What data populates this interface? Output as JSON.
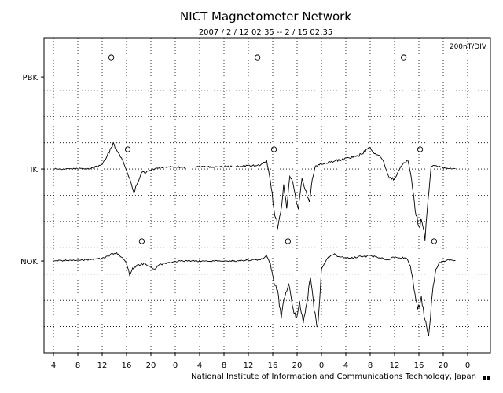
{
  "chart_data": {
    "type": "line",
    "title": "NICT Magnetometer Network",
    "subtitle": "2007 / 2 / 12  02:35 --  2 / 15  02:35",
    "scale_label": "200nT/DIV",
    "footer": "National Institute of Information and Communications Technology, Japan",
    "x_tick_labels": [
      "4",
      "8",
      "12",
      "16",
      "20",
      "0",
      "4",
      "8",
      "12",
      "16",
      "20",
      "0",
      "4",
      "8",
      "12",
      "16",
      "20",
      "0"
    ],
    "x_range_hours": [
      0,
      72
    ],
    "grid": "dotted",
    "series": [
      {
        "name": "PBK",
        "baseline_div": 1.5,
        "gaps": [],
        "markers_hours": [
          9.5,
          33.5,
          57.5
        ],
        "marker_offset_div": -0.75,
        "points": []
      },
      {
        "name": "TIK",
        "baseline_div": 5,
        "gaps": [
          [
            21.7,
            23.3
          ]
        ],
        "markers_hours": [
          12.2,
          36.2,
          60.2
        ],
        "marker_offset_div": -0.75,
        "points": [
          [
            0,
            0
          ],
          [
            6,
            0.02
          ],
          [
            8,
            0.15
          ],
          [
            9,
            0.6
          ],
          [
            9.8,
            0.95
          ],
          [
            10.3,
            0.8
          ],
          [
            11,
            0.5
          ],
          [
            11.6,
            0.2
          ],
          [
            12.2,
            -0.2
          ],
          [
            12.8,
            -0.6
          ],
          [
            13.2,
            -0.9
          ],
          [
            13.8,
            -0.55
          ],
          [
            14.5,
            -0.1
          ],
          [
            15,
            -0.15
          ],
          [
            17,
            0.05
          ],
          [
            19,
            0.1
          ],
          [
            21.7,
            0.05
          ],
          [
            23.3,
            0.1
          ],
          [
            26,
            0.08
          ],
          [
            29,
            0.1
          ],
          [
            32,
            0.12
          ],
          [
            34,
            0.15
          ],
          [
            35,
            0.3
          ],
          [
            35.6,
            -0.4
          ],
          [
            36.2,
            -1.5
          ],
          [
            36.8,
            -2.2
          ],
          [
            37.3,
            -1.7
          ],
          [
            37.8,
            -0.6
          ],
          [
            38.3,
            -1.4
          ],
          [
            38.8,
            -0.3
          ],
          [
            39.3,
            -0.5
          ],
          [
            40.2,
            -1.6
          ],
          [
            40.8,
            -0.4
          ],
          [
            41.5,
            -0.9
          ],
          [
            42,
            -1.3
          ],
          [
            42.5,
            -0.4
          ],
          [
            43,
            0.1
          ],
          [
            44,
            0.2
          ],
          [
            46,
            0.3
          ],
          [
            48,
            0.4
          ],
          [
            50,
            0.5
          ],
          [
            52,
            0.8
          ],
          [
            53,
            0.55
          ],
          [
            54,
            0.4
          ],
          [
            55,
            -0.3
          ],
          [
            56,
            -0.4
          ],
          [
            57,
            0.1
          ],
          [
            58.2,
            0.35
          ],
          [
            58.8,
            -0.4
          ],
          [
            59.4,
            -1.6
          ],
          [
            60,
            -2.2
          ],
          [
            60.5,
            -1.9
          ],
          [
            61,
            -2.6
          ],
          [
            61.5,
            -1.2
          ],
          [
            62,
            0.1
          ],
          [
            62.5,
            0.15
          ],
          [
            64,
            0.05
          ],
          [
            66,
            0.02
          ]
        ]
      },
      {
        "name": "NOK",
        "baseline_div": 8.5,
        "gaps": [],
        "markers_hours": [
          14.5,
          38.5,
          62.5
        ],
        "marker_offset_div": -0.75,
        "points": [
          [
            0,
            0
          ],
          [
            6,
            0.05
          ],
          [
            8,
            0.1
          ],
          [
            9.5,
            0.25
          ],
          [
            10.5,
            0.3
          ],
          [
            11.2,
            0.15
          ],
          [
            12,
            -0.1
          ],
          [
            12.5,
            -0.5
          ],
          [
            13,
            -0.3
          ],
          [
            14,
            -0.15
          ],
          [
            15,
            -0.1
          ],
          [
            16.5,
            -0.3
          ],
          [
            17.5,
            -0.15
          ],
          [
            19,
            -0.05
          ],
          [
            21,
            0
          ],
          [
            30,
            0
          ],
          [
            34,
            0.05
          ],
          [
            35,
            0.2
          ],
          [
            35.6,
            -0.1
          ],
          [
            36.2,
            -0.8
          ],
          [
            36.8,
            -1.2
          ],
          [
            37.4,
            -2.1
          ],
          [
            38,
            -1.4
          ],
          [
            38.6,
            -0.9
          ],
          [
            39.2,
            -1.6
          ],
          [
            39.8,
            -2.3
          ],
          [
            40.4,
            -1.5
          ],
          [
            41,
            -2.4
          ],
          [
            41.6,
            -1.6
          ],
          [
            42.2,
            -0.6
          ],
          [
            42.8,
            -1.8
          ],
          [
            43.4,
            -2.6
          ],
          [
            44,
            -0.3
          ],
          [
            45,
            0.1
          ],
          [
            46,
            0.25
          ],
          [
            48,
            0.1
          ],
          [
            50,
            0.15
          ],
          [
            52,
            0.2
          ],
          [
            53,
            0.15
          ],
          [
            55,
            0.05
          ],
          [
            56,
            0.15
          ],
          [
            58,
            0.1
          ],
          [
            58.6,
            -0.2
          ],
          [
            59.2,
            -1.0
          ],
          [
            59.8,
            -1.9
          ],
          [
            60.4,
            -1.4
          ],
          [
            61,
            -2.3
          ],
          [
            61.6,
            -2.9
          ],
          [
            62.2,
            -1.2
          ],
          [
            62.8,
            -0.3
          ],
          [
            63.4,
            -0.05
          ],
          [
            65,
            0.05
          ],
          [
            66,
            0.02
          ]
        ]
      }
    ]
  }
}
